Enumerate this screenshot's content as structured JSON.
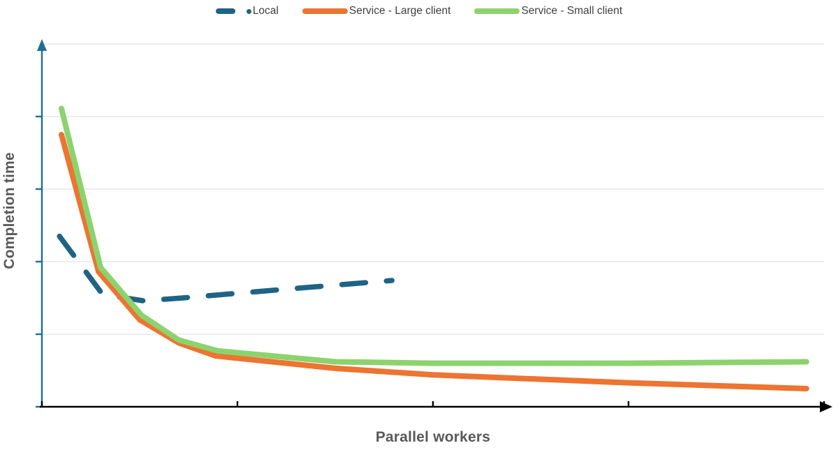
{
  "page": {
    "background": "#FFFFFF"
  },
  "legend": {
    "items": [
      {
        "id": "local",
        "label": "Local",
        "color": "#1F6384",
        "marker": "dash-dot"
      },
      {
        "id": "service-large",
        "label": "Service - Large client",
        "color": "#ED7431",
        "marker": "line"
      },
      {
        "id": "service-small",
        "label": "Service - Small client",
        "color": "#8CD36E",
        "marker": "line"
      }
    ]
  },
  "axis_titles": {
    "x": "Parallel workers",
    "y": "Completion time",
    "color": "#595959"
  },
  "chart_data": {
    "type": "line",
    "title": "",
    "xlabel": "Parallel workers",
    "ylabel": "Completion time",
    "x_axis": {
      "min": 0,
      "max": 4,
      "tick_step": 1,
      "tick_labels_visible": false,
      "arrow": true,
      "color": "#000000"
    },
    "y_axis": {
      "min": 0,
      "max": 5,
      "tick_step": 1,
      "tick_labels_visible": false,
      "arrow": true,
      "color": "#1C6E96"
    },
    "grid": {
      "horizontal": true,
      "vertical": false,
      "color": "#E7E7E7"
    },
    "legend_position": "top-center",
    "axes_unlabeled_note": "no numeric tick labels shown; values are in gridline units read from the plot",
    "series": [
      {
        "name": "Local",
        "color": "#1F6384",
        "style": "dashed",
        "points": [
          [
            0.09,
            2.35
          ],
          [
            0.31,
            1.55
          ],
          [
            0.52,
            1.46
          ],
          [
            0.72,
            1.5
          ],
          [
            1.29,
            1.63
          ],
          [
            1.79,
            1.74
          ]
        ]
      },
      {
        "name": "Service - Large client",
        "color": "#ED7431",
        "style": "solid",
        "points": [
          [
            0.1,
            3.75
          ],
          [
            0.29,
            1.86
          ],
          [
            0.5,
            1.2
          ],
          [
            0.7,
            0.88
          ],
          [
            0.89,
            0.7
          ],
          [
            1.5,
            0.53
          ],
          [
            2.0,
            0.44
          ],
          [
            3.0,
            0.33
          ],
          [
            3.91,
            0.25
          ]
        ]
      },
      {
        "name": "Service - Small client",
        "color": "#8CD36E",
        "style": "solid",
        "points": [
          [
            0.1,
            4.11
          ],
          [
            0.3,
            1.92
          ],
          [
            0.51,
            1.26
          ],
          [
            0.7,
            0.92
          ],
          [
            0.9,
            0.77
          ],
          [
            1.5,
            0.62
          ],
          [
            2.0,
            0.6
          ],
          [
            3.0,
            0.6
          ],
          [
            3.91,
            0.62
          ]
        ]
      }
    ]
  }
}
